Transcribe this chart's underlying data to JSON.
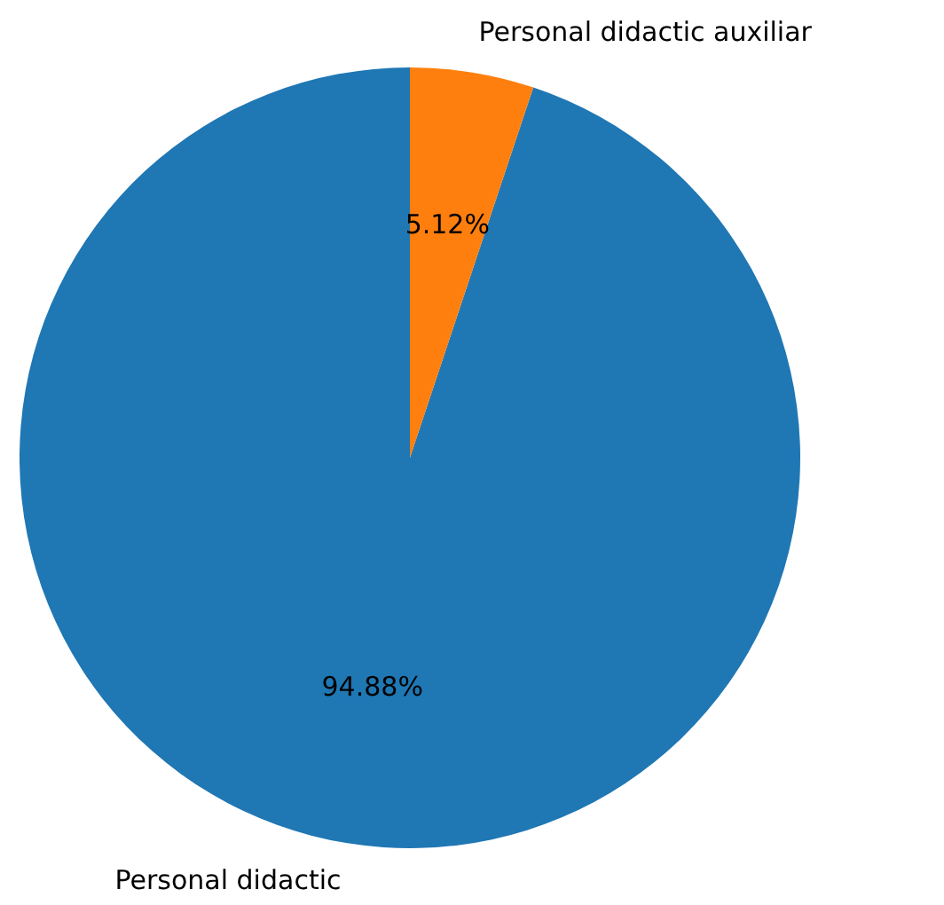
{
  "chart_data": {
    "type": "pie",
    "categories": [
      "Personal didactic",
      "Personal didactic auxiliar"
    ],
    "values": [
      94.88,
      5.12
    ],
    "value_labels": [
      "94.88%",
      "5.12%"
    ],
    "colors": [
      "#1f77b4",
      "#ff7f0e"
    ],
    "legend": false
  }
}
